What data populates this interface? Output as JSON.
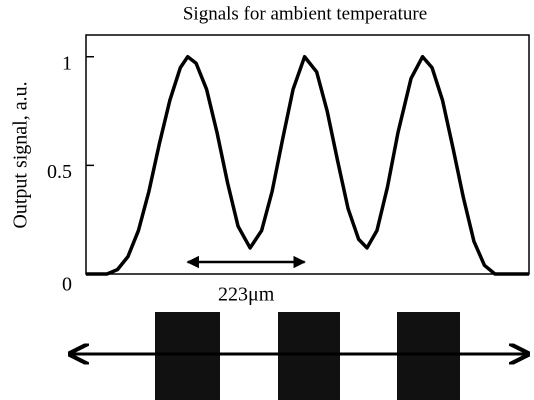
{
  "chart_data": {
    "type": "line",
    "title": "Signals for ambient temperature",
    "y_label": "Output signal, a.u.",
    "x": [
      0,
      40,
      60,
      80,
      100,
      120,
      140,
      160,
      180,
      194,
      210,
      230,
      250,
      270,
      290,
      313,
      335,
      355,
      375,
      395,
      417,
      440,
      460,
      480,
      500,
      520,
      536,
      555,
      575,
      595,
      620,
      642,
      660,
      680,
      700,
      720,
      740,
      760,
      780,
      800,
      845
    ],
    "series": [
      {
        "color": "#000000",
        "values": [
          0,
          0,
          0.02,
          0.08,
          0.2,
          0.38,
          0.6,
          0.8,
          0.95,
          1.0,
          0.97,
          0.85,
          0.65,
          0.42,
          0.22,
          0.12,
          0.2,
          0.38,
          0.62,
          0.85,
          1.0,
          0.93,
          0.75,
          0.52,
          0.3,
          0.16,
          0.12,
          0.2,
          0.4,
          0.65,
          0.9,
          1.0,
          0.95,
          0.8,
          0.58,
          0.35,
          0.15,
          0.04,
          0,
          0,
          0
        ]
      }
    ],
    "xlim": [
      0,
      845
    ],
    "ylim": [
      0,
      1.1
    ],
    "yticks": [
      0,
      0.5,
      1
    ],
    "annotation": {
      "text": "223μm",
      "x": [
        194,
        417
      ],
      "y": 0.055
    }
  }
}
